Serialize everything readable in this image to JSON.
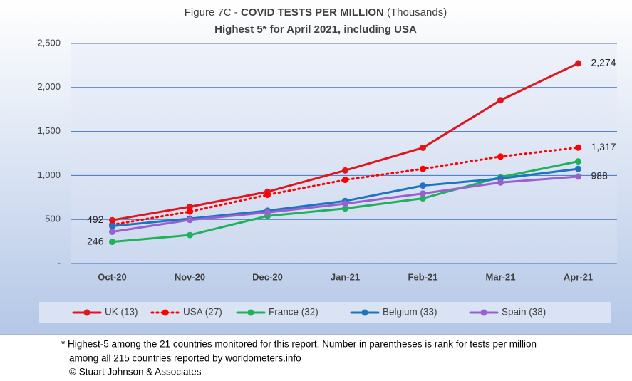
{
  "chart_data": {
    "type": "line",
    "title": "Figure 7C -",
    "title_emphasis": "COVID TESTS PER MILLION",
    "title_suffix": "(Thousands)",
    "subtitle": "Highest 5* for April 2021, including USA",
    "categories": [
      "Oct-20",
      "Nov-20",
      "Dec-20",
      "Jan-21",
      "Feb-21",
      "Mar-21",
      "Apr-21"
    ],
    "ylim": [
      0,
      2500
    ],
    "yticks": [
      {
        "value": 0,
        "label": "-"
      },
      500,
      {
        "value": 1000,
        "label": "1,000"
      },
      {
        "value": 1500,
        "label": "1,500"
      },
      {
        "value": 2000,
        "label": "2,000"
      },
      {
        "value": 2500,
        "label": "2,500"
      }
    ],
    "grid": true,
    "legend": "bottom",
    "series": [
      {
        "name": "UK (13)",
        "color": "#e0161c",
        "line_style": "solid",
        "values": [
          492,
          645,
          815,
          1057,
          1315,
          1855,
          2274
        ],
        "value_labels": [
          "492",
          null,
          null,
          null,
          null,
          null,
          "2,274"
        ]
      },
      {
        "name": "USA (27)",
        "color": "#ff0000",
        "line_style": "dotted",
        "values": [
          440,
          590,
          780,
          950,
          1075,
          1215,
          1317
        ],
        "value_labels": [
          null,
          null,
          null,
          null,
          null,
          null,
          "1,317"
        ]
      },
      {
        "name": "France (32)",
        "color": "#1fb25a",
        "line_style": "solid",
        "values": [
          246,
          323,
          540,
          625,
          740,
          980,
          1160
        ],
        "value_labels": [
          "246",
          null,
          null,
          null,
          null,
          null,
          null
        ]
      },
      {
        "name": "Belgium (33)",
        "color": "#1f74c2",
        "line_style": "solid",
        "values": [
          425,
          510,
          600,
          710,
          885,
          965,
          1075
        ]
      },
      {
        "name": "Spain (38)",
        "color": "#9a5fd0",
        "line_style": "solid",
        "values": [
          360,
          495,
          580,
          680,
          795,
          920,
          988
        ],
        "value_labels": [
          null,
          null,
          null,
          null,
          null,
          null,
          "988"
        ]
      }
    ],
    "footnote": [
      "* Highest-5 among the 21 countries monitored for this report. Number in parentheses is rank for tests per million",
      "among all 215 countries reported by worldometers.info",
      "© Stuart Johnson & Associates"
    ]
  }
}
